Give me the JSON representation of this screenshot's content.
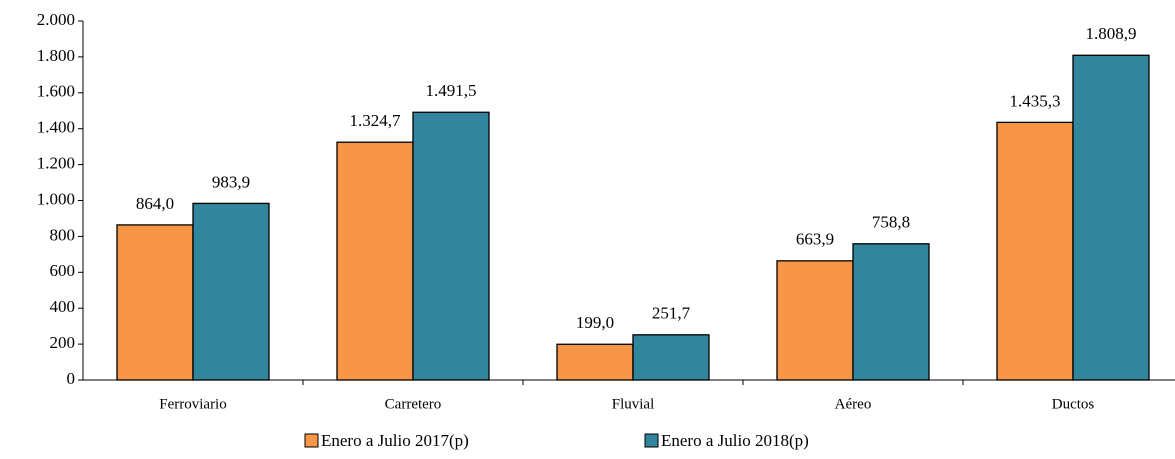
{
  "chart_data": {
    "type": "bar",
    "categories": [
      "Ferroviario",
      "Carretero",
      "Fluvial",
      "Aéreo",
      "Ductos"
    ],
    "series": [
      {
        "name": "Enero a Julio 2017(p)",
        "color": "#f79646",
        "values": [
          864.0,
          1324.7,
          199.0,
          663.9,
          1435.3
        ],
        "value_labels": [
          "864,0",
          "1.324,7",
          "199,0",
          "663,9",
          "1.435,3"
        ]
      },
      {
        "name": "Enero a Julio 2018(p)",
        "color": "#31859c",
        "values": [
          983.9,
          1491.5,
          251.7,
          758.8,
          1808.9
        ],
        "value_labels": [
          "983,9",
          "1.491,5",
          "251,7",
          "758,8",
          "1.808,9"
        ]
      }
    ],
    "ylim": [
      0,
      2000
    ],
    "yticks": [
      0,
      200,
      400,
      600,
      800,
      {
        "value": 1000,
        "label": "1.000"
      },
      {
        "value": 1200,
        "label": "1.200"
      },
      {
        "value": 1400,
        "label": "1.400"
      },
      {
        "value": 1600,
        "label": "1.600"
      },
      {
        "value": 1800,
        "label": "1.800"
      },
      {
        "value": 2000,
        "label": "2.000"
      }
    ],
    "legend": "bottom"
  }
}
